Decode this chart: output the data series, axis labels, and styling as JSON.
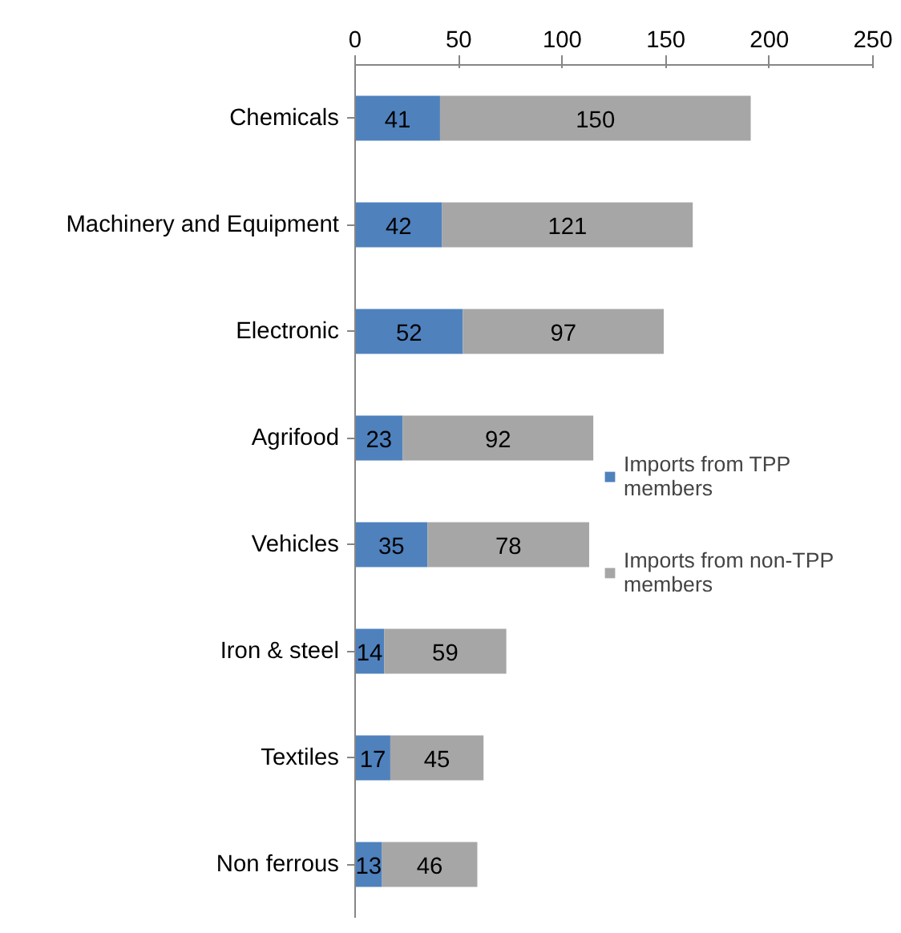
{
  "chart_data": {
    "type": "bar",
    "orientation": "horizontal",
    "stacked": true,
    "categories": [
      "Chemicals",
      "Machinery and Equipment",
      "Electronic",
      "Agrifood",
      "Vehicles",
      "Iron & steel",
      "Textiles",
      "Non ferrous"
    ],
    "series": [
      {
        "name": "Imports from TPP members",
        "color": "#4f81bd",
        "values": [
          41,
          42,
          52,
          23,
          35,
          14,
          17,
          13
        ]
      },
      {
        "name": "Imports from non-TPP members",
        "color": "#a6a6a6",
        "values": [
          150,
          121,
          97,
          92,
          78,
          59,
          45,
          46
        ]
      }
    ],
    "xlim": [
      0,
      250
    ],
    "xticks": [
      0,
      50,
      100,
      150,
      200,
      250
    ],
    "data_labels": true,
    "legend": "right",
    "grid": false
  }
}
